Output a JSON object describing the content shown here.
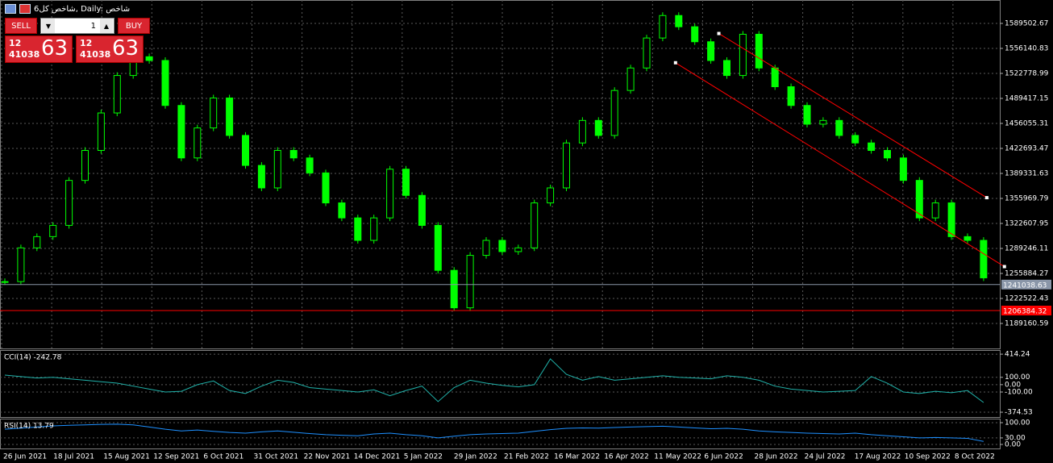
{
  "header": {
    "title": "شاخص کل6, Daily: شاخص"
  },
  "trade_panel": {
    "sell": "SELL",
    "buy": "BUY",
    "volume": "1",
    "sell_price": {
      "big": "12",
      "mid": "41038",
      "pips": "63"
    },
    "buy_price": {
      "big": "12",
      "mid": "41038",
      "pips": "63"
    }
  },
  "chart_data": [
    {
      "type": "candlestick",
      "color": "#00ff00",
      "grid": true,
      "values": [
        1245000,
        1290000,
        1305000,
        1320000,
        1380000,
        1420000,
        1470000,
        1520000,
        1545000,
        1540000,
        1480000,
        1410000,
        1450000,
        1490000,
        1440000,
        1400000,
        1370000,
        1420000,
        1410000,
        1390000,
        1350000,
        1330000,
        1300000,
        1330000,
        1395000,
        1360000,
        1320000,
        1260000,
        1210000,
        1280000,
        1300000,
        1285000,
        1290000,
        1350000,
        1370000,
        1430000,
        1460000,
        1440000,
        1500000,
        1530000,
        1570000,
        1600000,
        1585000,
        1565000,
        1540000,
        1520000,
        1575000,
        1530000,
        1505000,
        1480000,
        1455000,
        1460000,
        1440000,
        1430000,
        1420000,
        1410000,
        1380000,
        1330000,
        1350000,
        1305000,
        1300000,
        1250000
      ],
      "ylim": [
        1155800,
        1620700
      ],
      "yticks": [
        1589502.67,
        1556140.83,
        1522778.99,
        1489417.15,
        1456055.31,
        1422693.47,
        1389331.63,
        1355969.79,
        1322607.95,
        1289246.11,
        1255884.27,
        1222522.43,
        1189160.59
      ],
      "price_lines": [
        {
          "value": 1241038.63,
          "color": "#8a96a8"
        },
        {
          "value": 1206384.32,
          "color": "#ff0000"
        }
      ],
      "trendlines": [
        {
          "color": "#ff0000",
          "x": [
            44.5,
            61.2
          ],
          "y": [
            1576000,
            1357000
          ]
        },
        {
          "color": "#ff0000",
          "x": [
            41.8,
            62.3
          ],
          "y": [
            1537000,
            1265000
          ]
        }
      ],
      "xlabels": [
        "26 Jun 2021",
        "18 Jul 2021",
        "15 Aug 2021",
        "12 Sep 2021",
        "6 Oct 2021",
        "31 Oct 2021",
        "22 Nov 2021",
        "14 Dec 2021",
        "5 Jan 2022",
        "29 Jan 2022",
        "21 Feb 2022",
        "16 Mar 2022",
        "16 Apr 2022",
        "11 May 2022",
        "6 Jun 2022",
        "28 Jun 2022",
        "24 Jul 2022",
        "17 Aug 2022",
        "10 Sep 2022",
        "8 Oct 2022"
      ]
    },
    {
      "type": "line",
      "title": "CCI(14) -242.78",
      "color": "#20b2aa",
      "values": [
        130,
        110,
        90,
        100,
        80,
        60,
        40,
        20,
        -20,
        -60,
        -100,
        -90,
        0,
        50,
        -80,
        -120,
        -20,
        60,
        30,
        -40,
        -60,
        -80,
        -100,
        -70,
        -150,
        -80,
        -20,
        -230,
        -40,
        60,
        20,
        -10,
        -30,
        0,
        350,
        140,
        60,
        110,
        60,
        80,
        100,
        120,
        100,
        90,
        80,
        120,
        100,
        60,
        -20,
        -60,
        -80,
        -100,
        -90,
        -80,
        110,
        20,
        -100,
        -120,
        -90,
        -110,
        -80,
        -242.78
      ],
      "ylim": [
        -440,
        470
      ],
      "yticks": [
        414.24,
        {
          "value": 100,
          "label": "100.00"
        },
        {
          "value": 0,
          "label": "0.00"
        },
        {
          "value": -100,
          "label": "-100.00"
        },
        -374.53
      ]
    },
    {
      "type": "line",
      "title": "RSI(14) 13.79",
      "color": "#1e90ff",
      "values": [
        70,
        75,
        80,
        85,
        88,
        90,
        92,
        93,
        90,
        80,
        70,
        62,
        66,
        60,
        55,
        52,
        58,
        62,
        56,
        50,
        45,
        42,
        40,
        48,
        52,
        45,
        40,
        30,
        38,
        45,
        48,
        50,
        52,
        60,
        68,
        74,
        76,
        75,
        78,
        80,
        82,
        84,
        80,
        76,
        72,
        74,
        70,
        62,
        58,
        55,
        52,
        50,
        48,
        52,
        45,
        40,
        35,
        30,
        32,
        30,
        28,
        13.79
      ],
      "ylim": [
        -18.5,
        118.5
      ],
      "yticks": [
        {
          "value": 100,
          "label": "100.00"
        },
        {
          "value": 30,
          "label": "30.00"
        },
        {
          "value": 0,
          "label": "0.00"
        }
      ]
    }
  ]
}
